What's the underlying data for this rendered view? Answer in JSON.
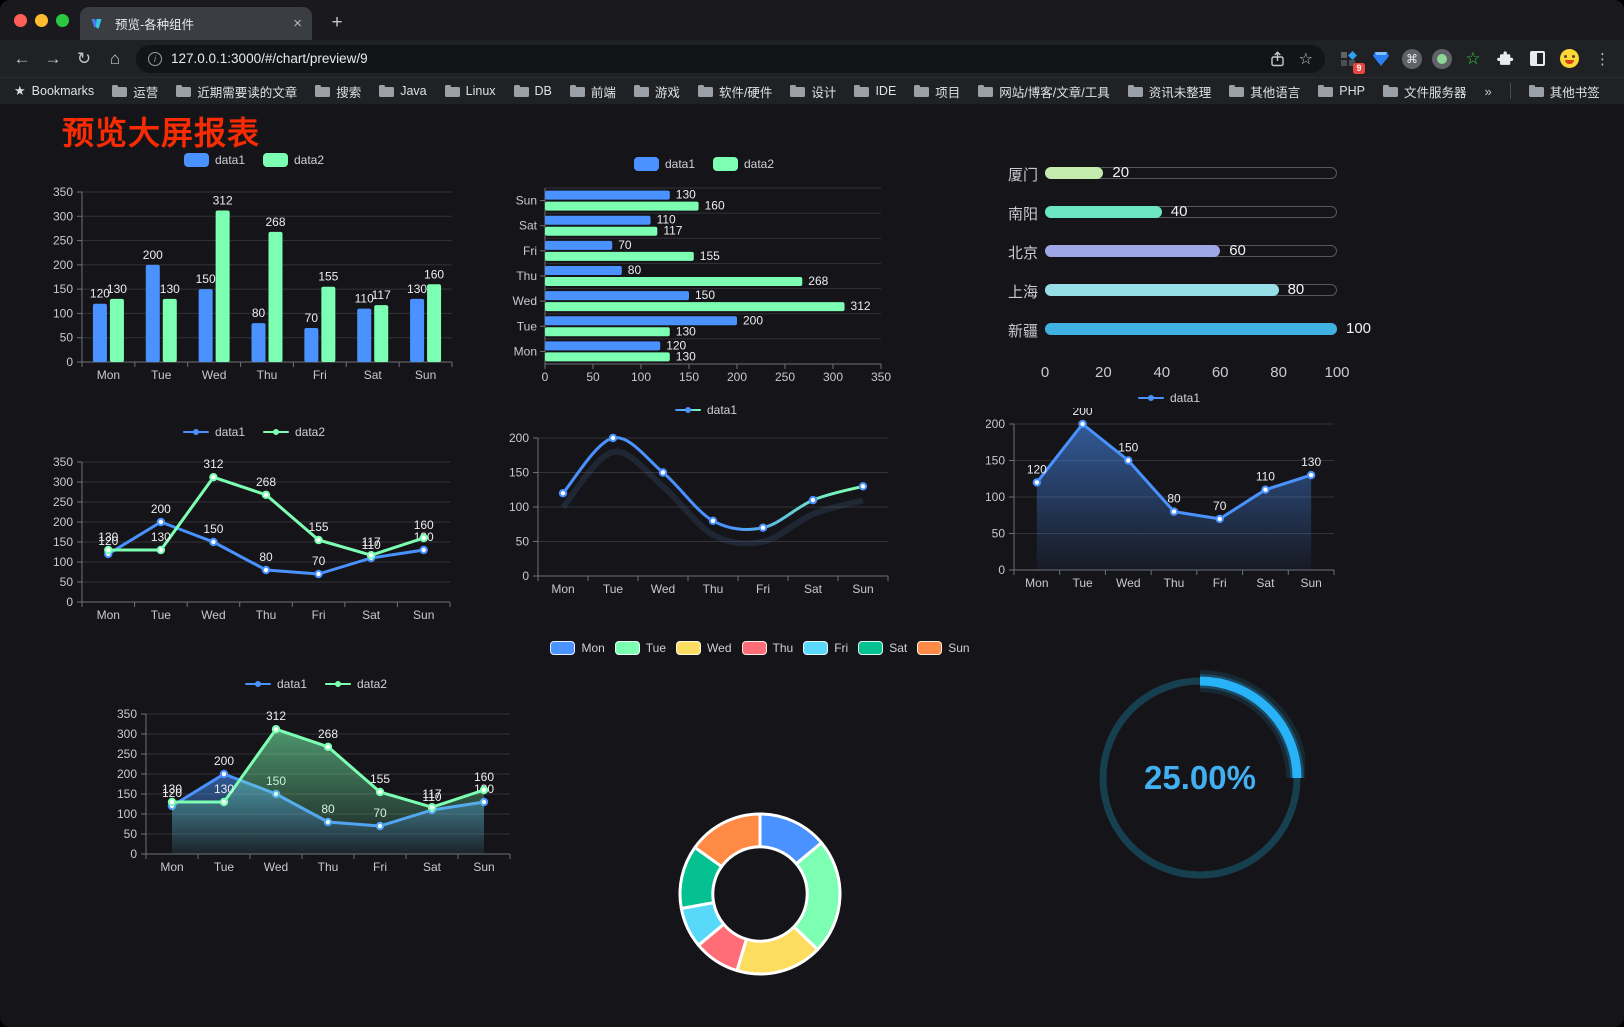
{
  "tab": {
    "title": "预览-各种组件",
    "close_label": "×",
    "new_tab_label": "+"
  },
  "address": {
    "url": "127.0.0.1:3000/#/chart/preview/9",
    "info_label": "i"
  },
  "extensions": {
    "badge": "9",
    "cmd_glyph": "⌘",
    "star_glyph": "☆",
    "menu_glyph": "⋮"
  },
  "toolbar_icons": {
    "back": "←",
    "forward": "→",
    "reload": "↻",
    "home": "⌂",
    "bookmark_star": "☆"
  },
  "bookmarks": {
    "label": "Bookmarks",
    "items": [
      "运营",
      "近期需要读的文章",
      "搜索",
      "Java",
      "Linux",
      "DB",
      "前端",
      "游戏",
      "软件/硬件",
      "设计",
      "IDE",
      "项目",
      "网站/博客/文章/工具",
      "资讯未整理",
      "其他语言",
      "PHP",
      "文件服务器"
    ],
    "overflow": "»",
    "other": "其他书签"
  },
  "page": {
    "title": "预览大屏报表"
  },
  "chart_data": [
    {
      "id": "bar-vertical",
      "type": "bar",
      "categories": [
        "Mon",
        "Tue",
        "Wed",
        "Thu",
        "Fri",
        "Sat",
        "Sun"
      ],
      "series": [
        {
          "name": "data1",
          "color": "#4992ff",
          "values": [
            120,
            200,
            150,
            80,
            70,
            110,
            130
          ]
        },
        {
          "name": "data2",
          "color": "#7cffb2",
          "values": [
            130,
            130,
            312,
            268,
            155,
            117,
            160
          ]
        }
      ],
      "ylim": [
        0,
        350
      ],
      "ytick": 50,
      "legend_position": "top",
      "grid": true
    },
    {
      "id": "bar-horizontal",
      "type": "bar-horizontal",
      "categories": [
        "Mon",
        "Tue",
        "Wed",
        "Thu",
        "Fri",
        "Sat",
        "Sun"
      ],
      "series": [
        {
          "name": "data1",
          "color": "#4992ff",
          "values": [
            120,
            200,
            150,
            80,
            70,
            110,
            130
          ]
        },
        {
          "name": "data2",
          "color": "#7cffb2",
          "values": [
            130,
            130,
            312,
            268,
            155,
            117,
            160
          ]
        }
      ],
      "xlim": [
        0,
        350
      ],
      "xtick": 50,
      "legend_position": "top"
    },
    {
      "id": "progress",
      "type": "bar-progress",
      "rows": [
        {
          "label": "厦门",
          "value": 20,
          "color": "#c4ebad"
        },
        {
          "label": "南阳",
          "value": 40,
          "color": "#6be6c1"
        },
        {
          "label": "北京",
          "value": 60,
          "color": "#a0a7e6"
        },
        {
          "label": "上海",
          "value": 80,
          "color": "#96dee8"
        },
        {
          "label": "新疆",
          "value": 100,
          "color": "#3fb1e3"
        }
      ],
      "xlim": [
        0,
        100
      ],
      "xticks": [
        0,
        20,
        40,
        60,
        80,
        100
      ]
    },
    {
      "id": "line-dual",
      "type": "line",
      "categories": [
        "Mon",
        "Tue",
        "Wed",
        "Thu",
        "Fri",
        "Sat",
        "Sun"
      ],
      "series": [
        {
          "name": "data1",
          "color": "#4992ff",
          "values": [
            120,
            200,
            150,
            80,
            70,
            110,
            130
          ]
        },
        {
          "name": "data2",
          "color": "#7cffb2",
          "values": [
            130,
            130,
            312,
            268,
            155,
            117,
            160
          ]
        }
      ],
      "ylim": [
        0,
        350
      ],
      "ytick": 50,
      "labels": true,
      "legend_position": "top"
    },
    {
      "id": "line-smooth",
      "type": "line",
      "categories": [
        "Mon",
        "Tue",
        "Wed",
        "Thu",
        "Fri",
        "Sat",
        "Sun"
      ],
      "series": [
        {
          "name": "data1",
          "color": [
            "#4992ff",
            "#7cffb2"
          ],
          "values": [
            120,
            200,
            150,
            80,
            70,
            110,
            130
          ]
        }
      ],
      "ylim": [
        0,
        200
      ],
      "ytick": 50,
      "labels": false,
      "smooth": true,
      "shadow": true,
      "legend_position": "top"
    },
    {
      "id": "line-area",
      "type": "line",
      "categories": [
        "Mon",
        "Tue",
        "Wed",
        "Thu",
        "Fri",
        "Sat",
        "Sun"
      ],
      "series": [
        {
          "name": "data1",
          "color": "#4992ff",
          "values": [
            120,
            200,
            150,
            80,
            70,
            110,
            130
          ],
          "area": true
        }
      ],
      "ylim": [
        0,
        200
      ],
      "ytick": 50,
      "labels": true,
      "legend_position": "top"
    },
    {
      "id": "line-area-dual",
      "type": "line",
      "categories": [
        "Mon",
        "Tue",
        "Wed",
        "Thu",
        "Fri",
        "Sat",
        "Sun"
      ],
      "series": [
        {
          "name": "data1",
          "color": "#4992ff",
          "values": [
            120,
            200,
            150,
            80,
            70,
            110,
            130
          ],
          "area": true
        },
        {
          "name": "data2",
          "color": "#7cffb2",
          "values": [
            130,
            130,
            312,
            268,
            155,
            117,
            160
          ],
          "area": true
        }
      ],
      "ylim": [
        0,
        350
      ],
      "ytick": 50,
      "labels": true,
      "legend_position": "top"
    },
    {
      "id": "donut",
      "type": "pie",
      "labels": [
        "Mon",
        "Tue",
        "Wed",
        "Thu",
        "Fri",
        "Sat",
        "Sun"
      ],
      "values": [
        120,
        200,
        150,
        80,
        70,
        110,
        130
      ],
      "colors": [
        "#4992ff",
        "#7cffb2",
        "#fddd60",
        "#ff6e76",
        "#58d9f9",
        "#05c091",
        "#ff8a45"
      ],
      "inner_radius_ratio": 0.59,
      "legend_position": "top"
    },
    {
      "id": "gauge",
      "type": "gauge",
      "value": 25,
      "display": "25.00%",
      "progress_color": "#28b2f7",
      "track_color": "#16404f",
      "text_color": "#41aff0"
    }
  ]
}
